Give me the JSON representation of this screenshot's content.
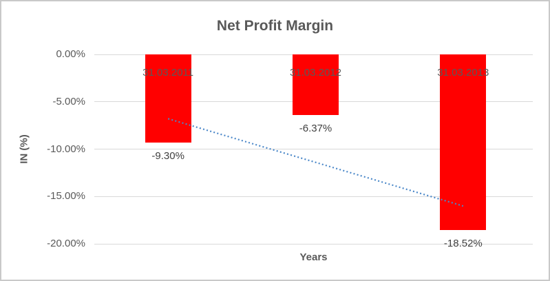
{
  "chart_data": {
    "type": "bar",
    "title": "Net Profit Margin",
    "ylabel": "IN (%)",
    "xlabel": "Years",
    "categories": [
      "31.03.2011",
      "31.03.2012",
      "31.03.2013"
    ],
    "values": [
      -9.3,
      -6.37,
      -18.52
    ],
    "data_labels": [
      "-9.30%",
      "-6.37%",
      "-18.52%"
    ],
    "y_ticks": [
      0,
      -5,
      -10,
      -15,
      -20
    ],
    "y_tick_labels": [
      "0.00%",
      "-5.00%",
      "-10.00%",
      "-15.00%",
      "-20.00%"
    ],
    "ylim": [
      -20,
      0
    ],
    "grid": true,
    "legend_position": "none",
    "trendline": {
      "type": "linear",
      "style": "dotted",
      "value_at_first_category": -6.79,
      "value_at_last_category": -16.01
    }
  },
  "colors": {
    "bar": "#FF0000",
    "trendline": "#4A87C8",
    "title_text": "#595959",
    "axis_text": "#595959",
    "data_label_text": "#404040",
    "gridline": "#D9D9D9",
    "frame_border": "#C9C9C9"
  }
}
